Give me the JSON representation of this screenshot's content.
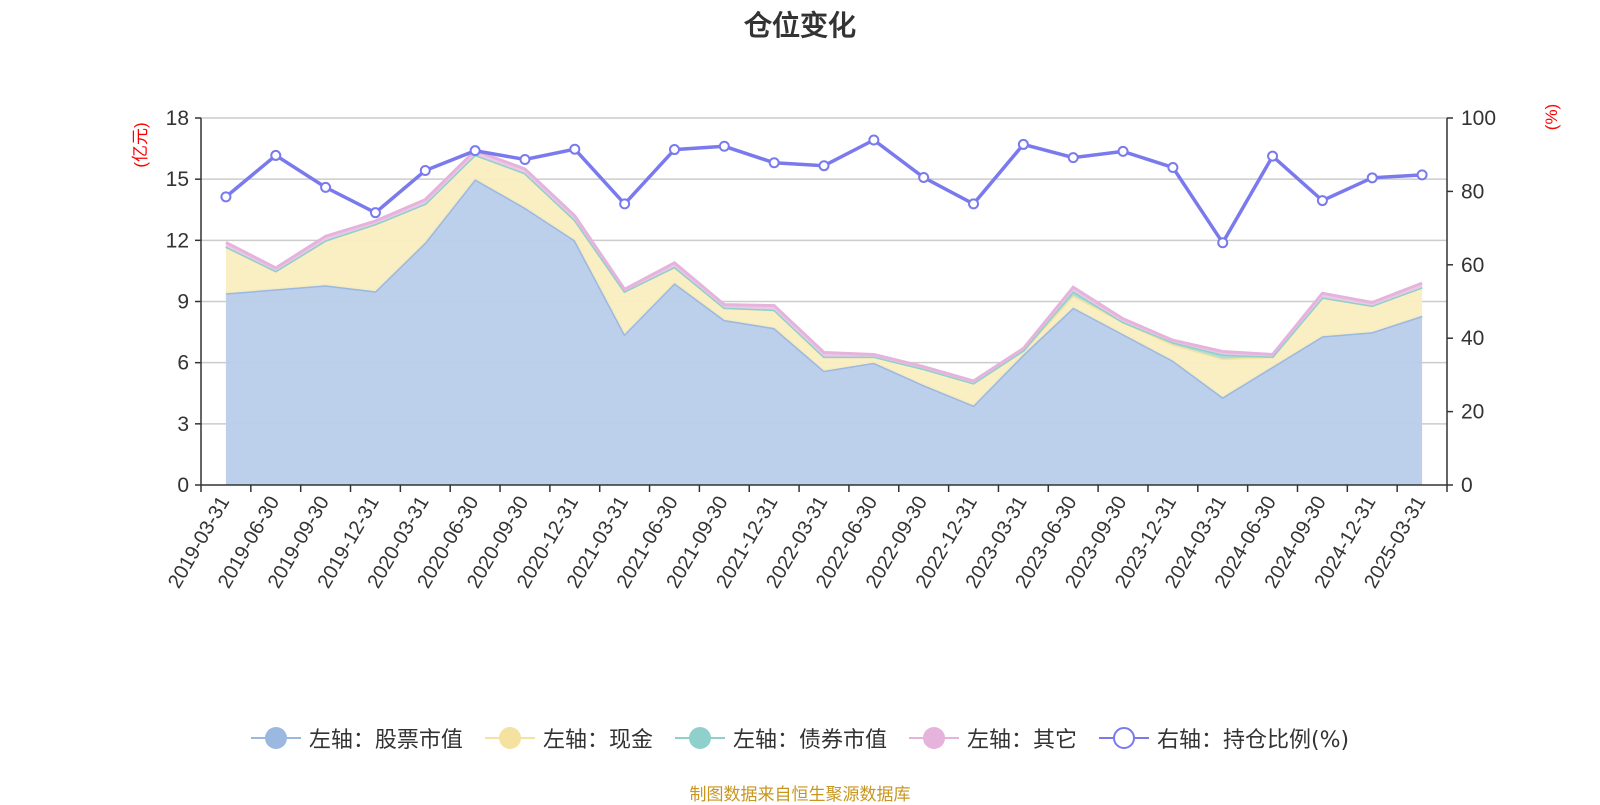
{
  "chart_data": {
    "type": "area",
    "title": "仓位变化",
    "left_axis_unit": "(亿元)",
    "right_axis_unit": "(%)",
    "left_ylim": [
      0,
      18
    ],
    "left_ticks": [
      0,
      3,
      6,
      9,
      12,
      15,
      18
    ],
    "right_ylim": [
      0,
      100
    ],
    "right_ticks": [
      0,
      20,
      40,
      60,
      80,
      100
    ],
    "grid": true,
    "legend_position": "bottom",
    "categories": [
      "2019-03-31",
      "2019-06-30",
      "2019-09-30",
      "2019-12-31",
      "2020-03-31",
      "2020-06-30",
      "2020-09-30",
      "2020-12-31",
      "2021-03-31",
      "2021-06-30",
      "2021-09-30",
      "2021-12-31",
      "2022-03-31",
      "2022-06-30",
      "2022-09-30",
      "2022-12-31",
      "2023-03-31",
      "2023-06-30",
      "2023-09-30",
      "2023-12-31",
      "2024-03-31",
      "2024-06-30",
      "2024-09-30",
      "2024-12-31",
      "2025-03-31"
    ],
    "series": [
      {
        "name": "左轴：股票市值",
        "axis": "left",
        "kind": "stacked-area",
        "color": "#9bb8e0",
        "fill": "#b9cdea",
        "values": [
          9.4,
          9.6,
          9.8,
          9.5,
          11.9,
          15.0,
          13.6,
          12.0,
          7.4,
          9.9,
          8.1,
          7.7,
          5.6,
          6.0,
          4.9,
          3.9,
          6.4,
          8.7,
          7.4,
          6.1,
          4.3,
          5.8,
          7.3,
          7.5,
          8.3
        ]
      },
      {
        "name": "左轴：现金",
        "axis": "left",
        "kind": "stacked-area",
        "color": "#f5e1a0",
        "fill": "#faedc0",
        "values": [
          2.3,
          0.9,
          2.2,
          3.3,
          1.9,
          1.2,
          1.7,
          1.0,
          2.1,
          0.8,
          0.6,
          0.9,
          0.7,
          0.3,
          0.8,
          1.1,
          0.2,
          0.6,
          0.6,
          0.8,
          1.9,
          0.5,
          1.9,
          1.3,
          1.4
        ]
      },
      {
        "name": "左轴：债券市值",
        "axis": "left",
        "kind": "stacked-area",
        "color": "#8fd0cc",
        "fill": "#a8dcd8",
        "values": [
          0,
          0,
          0,
          0,
          0,
          0,
          0,
          0,
          0,
          0,
          0,
          0,
          0,
          0,
          0,
          0,
          0,
          0.2,
          0,
          0.1,
          0.2,
          0,
          0,
          0,
          0
        ]
      },
      {
        "name": "左轴：其它",
        "axis": "left",
        "kind": "stacked-area",
        "color": "#e6b3dc",
        "fill": "#edc8e6",
        "values": [
          0.2,
          0.15,
          0.2,
          0.15,
          0.2,
          0.2,
          0.2,
          0.2,
          0.1,
          0.2,
          0.15,
          0.2,
          0.2,
          0.1,
          0.1,
          0.1,
          0.1,
          0.2,
          0.15,
          0.1,
          0.15,
          0.1,
          0.2,
          0.15,
          0.2
        ]
      },
      {
        "name": "右轴：持仓比例(%)",
        "axis": "right",
        "kind": "line",
        "color": "#7a7aee",
        "values": [
          78.5,
          89.8,
          81.1,
          74.2,
          85.7,
          91.1,
          88.7,
          91.5,
          76.6,
          91.4,
          92.3,
          87.8,
          87.0,
          94.0,
          83.8,
          76.6,
          92.8,
          89.2,
          90.9,
          86.5,
          66.0,
          89.6,
          77.5,
          83.7,
          84.5
        ]
      }
    ]
  },
  "source_note": "制图数据来自恒生聚源数据库"
}
